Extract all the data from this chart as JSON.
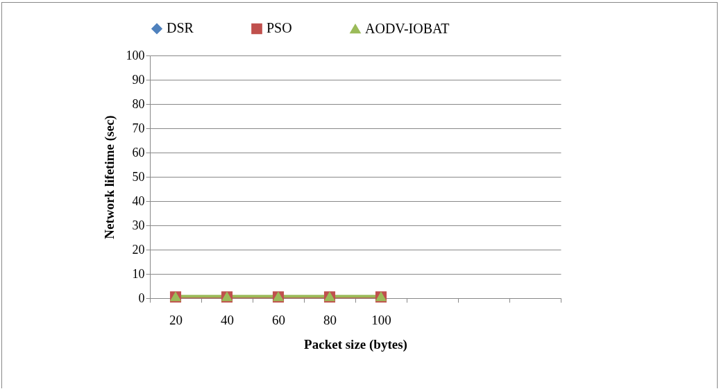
{
  "chart_data": {
    "type": "line",
    "xlabel": "Packet size (bytes)",
    "ylabel": "Network lifetime (sec)",
    "categories": [
      "20",
      "40",
      "60",
      "80",
      "100",
      null,
      null,
      null
    ],
    "ylim": [
      0,
      100
    ],
    "yticks": [
      0,
      10,
      20,
      30,
      40,
      50,
      60,
      70,
      80,
      90,
      100
    ],
    "grid": "y",
    "legend": "top",
    "series": [
      {
        "name": "DSR",
        "color": "#4f81bd",
        "marker": "diamond",
        "values": [
          null,
          null,
          null,
          null,
          null,
          null,
          null,
          null
        ]
      },
      {
        "name": "PSO",
        "color": "#c0504d",
        "marker": "square",
        "values": [
          0.5,
          0.5,
          0.5,
          0.5,
          0.5,
          null,
          null,
          null
        ]
      },
      {
        "name": "AODV-IOBAT",
        "color": "#9bbb59",
        "marker": "triangle",
        "values": [
          0.8,
          0.8,
          0.8,
          0.8,
          0.8,
          null,
          null,
          null
        ]
      }
    ]
  }
}
